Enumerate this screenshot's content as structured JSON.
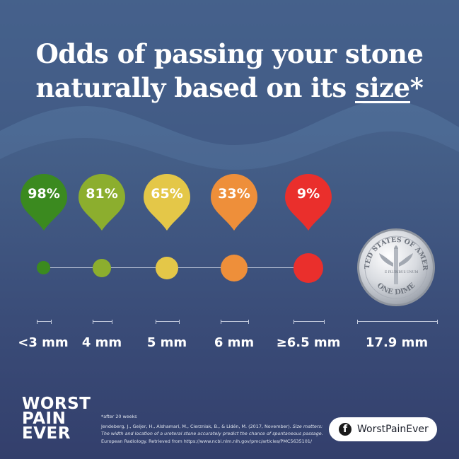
{
  "title": {
    "line1": "Odds of passing your stone",
    "line2a": "naturally based on its ",
    "line2b": "size",
    "line2c": "*"
  },
  "stones": [
    {
      "percent": "98%",
      "size": "<3 mm",
      "color": "#3b8a1f"
    },
    {
      "percent": "81%",
      "size": "4 mm",
      "color": "#8cae2e"
    },
    {
      "percent": "65%",
      "size": "5 mm",
      "color": "#e4c748"
    },
    {
      "percent": "33%",
      "size": "6 mm",
      "color": "#ee8f3a"
    },
    {
      "percent": "9%",
      "size": "≥6.5 mm",
      "color": "#ea2f2c"
    }
  ],
  "coin": {
    "size": "17.9 mm",
    "top_text": "UNITED STATES OF AMERICA",
    "bottom_text": "ONE DIME",
    "motto": "E PLURIBUS UNUM"
  },
  "brand": {
    "line1": "WORST",
    "line2": "PAIN",
    "line3": "EVER"
  },
  "footnote": {
    "note": "*after 20 weeks",
    "citation_authors": "Jendeberg, J., Geijer, H., Alshamari, M., Cierzniak, B., & Lidén, M. (2017, November). ",
    "citation_title": "Size matters: The width and location of a ureteral stone accurately predict the chance of spontaneous passage.",
    "citation_rest": " European Radiology. Retrieved from https://www.ncbi.nlm.nih.gov/pmc/articles/PMC5635101/"
  },
  "social": {
    "label": "WorstPainEver",
    "icon": "facebook-icon"
  }
}
